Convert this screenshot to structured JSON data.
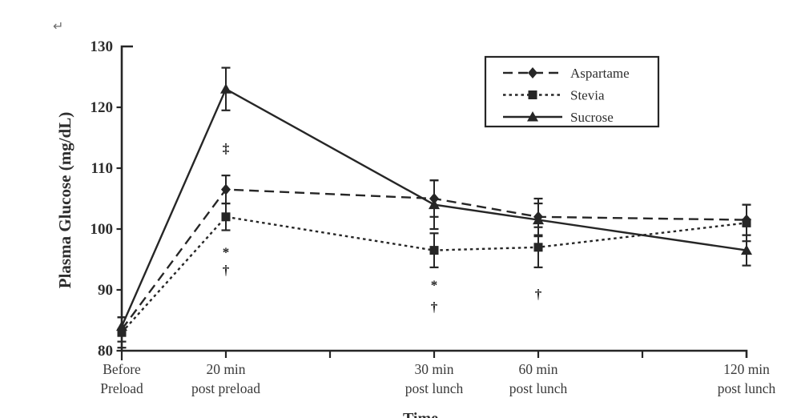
{
  "page": {
    "return_mark": "↵",
    "background": "#ffffff",
    "ink_color": "#262626",
    "text_color": "#3a3a3a"
  },
  "chart_data": {
    "type": "line",
    "title": "",
    "ylabel": "Plasma Glucose (mg/dL)",
    "xlabel": "Time",
    "ylim": [
      80,
      130
    ],
    "yticks": [
      80,
      90,
      100,
      110,
      120,
      130
    ],
    "grid": false,
    "x_axis": {
      "tick_count": 7,
      "labeled_tick_indices": [
        0,
        1,
        3,
        4,
        6
      ],
      "categories": [
        {
          "line1": "Before",
          "line2": "Preload"
        },
        {
          "line1": "20 min",
          "line2": "post preload"
        },
        {
          "line1": "30 min",
          "line2": "post lunch"
        },
        {
          "line1": "60 min",
          "line2": "post lunch"
        },
        {
          "line1": "120 min",
          "line2": "post lunch"
        }
      ]
    },
    "series": [
      {
        "name": "Aspartame",
        "marker": "diamond",
        "line_style": "dashed",
        "values": [
          83.5,
          106.5,
          105,
          102,
          101.5
        ],
        "error": [
          2,
          2.3,
          3,
          3,
          2.5
        ]
      },
      {
        "name": "Stevia",
        "marker": "square",
        "line_style": "dotted",
        "values": [
          83,
          102,
          96.5,
          97,
          101
        ],
        "error": [
          2.5,
          2.2,
          2.8,
          3.3,
          3
        ]
      },
      {
        "name": "Sucrose",
        "marker": "triangle",
        "line_style": "solid",
        "values": [
          84,
          123,
          104,
          101.5,
          96.5
        ],
        "error": [
          1.5,
          3.5,
          4,
          2.7,
          2.5
        ]
      }
    ],
    "annotations": [
      {
        "text": "‡",
        "category_index": 1,
        "value": 113.2
      },
      {
        "text": "*",
        "category_index": 1,
        "value": 96.2
      },
      {
        "text": "†",
        "category_index": 1,
        "value": 93.2
      },
      {
        "text": "*",
        "category_index": 2,
        "value": 90.8
      },
      {
        "text": "†",
        "category_index": 2,
        "value": 87.2
      },
      {
        "text": "†",
        "category_index": 3,
        "value": 89.3
      }
    ],
    "legend": {
      "position": "top-right",
      "entries": [
        "Aspartame",
        "Stevia",
        "Sucrose"
      ]
    }
  }
}
